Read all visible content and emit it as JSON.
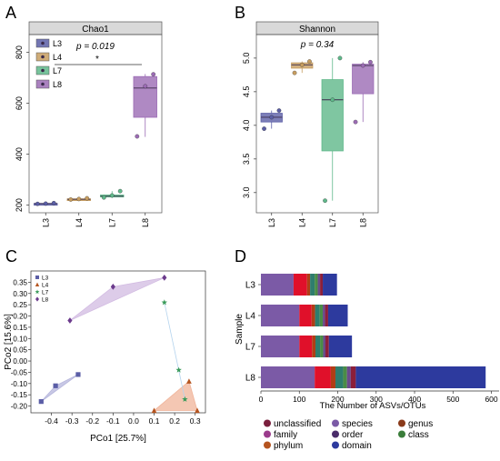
{
  "panel_labels": [
    "A",
    "B",
    "C",
    "D"
  ],
  "chart_data": [
    {
      "type": "box",
      "panel": "A",
      "title": "Chao1",
      "annotation_p": "p = 0.019",
      "annotation_sig": "*",
      "categories": [
        "L3",
        "L4",
        "L7",
        "L8"
      ],
      "colors": [
        "#5b5ea6",
        "#c79d60",
        "#5fb88a",
        "#9b6bb4"
      ],
      "legend": [
        "L3",
        "L4",
        "L7",
        "L8"
      ],
      "ylim": [
        170,
        870
      ],
      "yticks": [
        200,
        400,
        600,
        800
      ],
      "boxes": [
        {
          "min": 205,
          "q1": 205,
          "median": 206,
          "q3": 207,
          "max": 208
        },
        {
          "min": 221,
          "q1": 222,
          "median": 223,
          "q3": 225,
          "max": 229
        },
        {
          "min": 228,
          "q1": 232,
          "median": 235,
          "q3": 240,
          "max": 255
        },
        {
          "min": 468,
          "q1": 545,
          "median": 660,
          "q3": 705,
          "max": 715
        }
      ],
      "points": [
        [
          205,
          206,
          208
        ],
        [
          222,
          224,
          227
        ],
        [
          230,
          238,
          255
        ],
        [
          470,
          667,
          714
        ]
      ]
    },
    {
      "type": "box",
      "panel": "B",
      "title": "Shannon",
      "annotation_p": "p = 0.34",
      "categories": [
        "L3",
        "L4",
        "L7",
        "L8"
      ],
      "colors": [
        "#5b5ea6",
        "#c79d60",
        "#5fb88a",
        "#9b6bb4"
      ],
      "ylim": [
        2.7,
        5.35
      ],
      "yticks": [
        3.0,
        3.5,
        4.0,
        4.5,
        5.0
      ],
      "boxes": [
        {
          "min": 3.95,
          "q1": 4.05,
          "median": 4.12,
          "q3": 4.18,
          "max": 4.22
        },
        {
          "min": 4.78,
          "q1": 4.85,
          "median": 4.9,
          "q3": 4.93,
          "max": 4.95
        },
        {
          "min": 2.88,
          "q1": 3.62,
          "median": 4.38,
          "q3": 4.68,
          "max": 5.0
        },
        {
          "min": 4.05,
          "q1": 4.47,
          "median": 4.89,
          "q3": 4.91,
          "max": 4.94
        }
      ],
      "points": [
        [
          3.95,
          4.12,
          4.22
        ],
        [
          4.78,
          4.9,
          4.95
        ],
        [
          2.88,
          4.38,
          5.0
        ],
        [
          4.05,
          4.89,
          4.94
        ]
      ]
    },
    {
      "type": "scatter",
      "panel": "C",
      "xlabel": "PCo1 [25.7%]",
      "ylabel": "PCo2 [15.6%]",
      "xlim": [
        -0.5,
        0.35
      ],
      "ylim": [
        -0.23,
        0.4
      ],
      "xticks": [
        -0.4,
        -0.3,
        -0.2,
        -0.1,
        0.0,
        0.1,
        0.2,
        0.3
      ],
      "yticks": [
        -0.2,
        -0.15,
        -0.1,
        -0.05,
        0.0,
        0.05,
        0.1,
        0.15,
        0.2,
        0.25,
        0.3,
        0.35
      ],
      "legend": [
        "L3",
        "L4",
        "L7",
        "L8"
      ],
      "series": [
        {
          "name": "L3",
          "color": "#5b5ea6",
          "marker": "square",
          "points": [
            [
              -0.45,
              -0.18
            ],
            [
              -0.38,
              -0.11
            ],
            [
              -0.27,
              -0.06
            ]
          ]
        },
        {
          "name": "L4",
          "color": "#b5541f",
          "marker": "triangle",
          "points": [
            [
              0.1,
              -0.22
            ],
            [
              0.27,
              -0.09
            ],
            [
              0.31,
              -0.22
            ]
          ]
        },
        {
          "name": "L7",
          "color": "#3a9b5a",
          "marker": "star",
          "points": [
            [
              0.15,
              0.26
            ],
            [
              0.22,
              -0.04
            ],
            [
              0.25,
              -0.17
            ]
          ]
        },
        {
          "name": "L8",
          "color": "#6b3a8c",
          "marker": "diamond",
          "points": [
            [
              -0.31,
              0.18
            ],
            [
              -0.1,
              0.33
            ],
            [
              0.15,
              0.37
            ]
          ]
        }
      ],
      "hulls": [
        {
          "color": "#b5b5dc",
          "points": [
            [
              -0.45,
              -0.18
            ],
            [
              -0.38,
              -0.11
            ],
            [
              -0.27,
              -0.06
            ]
          ]
        },
        {
          "color": "#f0b49a",
          "points": [
            [
              0.1,
              -0.22
            ],
            [
              0.27,
              -0.09
            ],
            [
              0.31,
              -0.22
            ]
          ]
        },
        {
          "color": "#b5d4ee",
          "points": [
            [
              0.15,
              0.26
            ],
            [
              0.22,
              -0.04
            ],
            [
              0.25,
              -0.17
            ]
          ]
        },
        {
          "color": "#d2bbe2",
          "points": [
            [
              -0.31,
              0.18
            ],
            [
              -0.1,
              0.33
            ],
            [
              0.15,
              0.37
            ]
          ]
        }
      ]
    },
    {
      "type": "stacked-bar-horizontal",
      "panel": "D",
      "xlabel": "The Number of ASVs/OTUs",
      "ylabel": "Sample",
      "categories": [
        "L3",
        "L4",
        "L7",
        "L8"
      ],
      "xlim": [
        0,
        620
      ],
      "xticks": [
        0,
        100,
        200,
        300,
        400,
        500,
        600
      ],
      "series": [
        {
          "name": "species",
          "color": "#7b5aa6",
          "values": [
            85,
            100,
            100,
            140
          ]
        },
        {
          "name": "family",
          "color": "#e0102a",
          "values": [
            35,
            32,
            33,
            42
          ]
        },
        {
          "name": "phylum",
          "color": "#b03e15",
          "values": [
            8,
            9,
            9,
            12
          ]
        },
        {
          "name": "class",
          "color": "#2e7d6e",
          "values": [
            12,
            12,
            12,
            20
          ]
        },
        {
          "name": "genus",
          "color": "#4a8c46",
          "values": [
            8,
            8,
            8,
            10
          ]
        },
        {
          "name": "order",
          "color": "#6a4a8c",
          "values": [
            6,
            6,
            6,
            10
          ]
        },
        {
          "name": "unclassified",
          "color": "#8c1f3a",
          "values": [
            7,
            8,
            9,
            13
          ]
        },
        {
          "name": "domain",
          "color": "#2d3a9e",
          "values": [
            37,
            51,
            60,
            338
          ]
        }
      ],
      "legend": [
        [
          "unclassified",
          "species",
          "genus"
        ],
        [
          "family",
          "order",
          "class"
        ],
        [
          "phylum",
          "domain"
        ]
      ],
      "legend_colors": {
        "unclassified": "#7a1f3d",
        "species": "#7b5aa6",
        "genus": "#8a3a1a",
        "family": "#9b3b8c",
        "order": "#4a2c6a",
        "class": "#3a7d3a",
        "phylum": "#b5541f",
        "domain": "#2d3a9e"
      }
    }
  ]
}
